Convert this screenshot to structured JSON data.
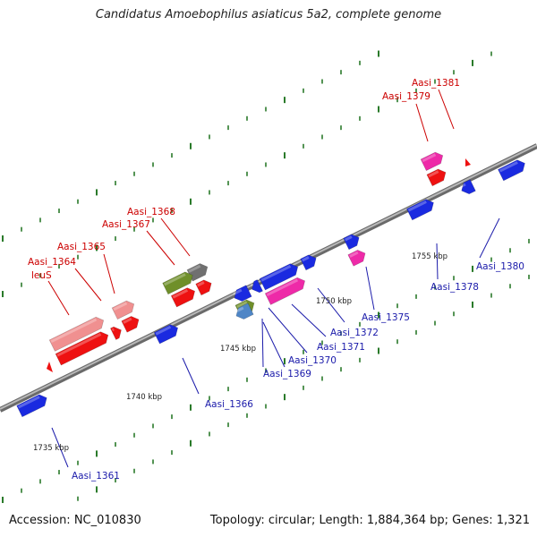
{
  "title": "Candidatus Amoebophilus asiaticus 5a2, complete genome",
  "footer": {
    "accession": "Accession: NC_010830",
    "summary": "Topology: circular; Length: 1,884,364 bp; Genes: 1,321"
  },
  "colors": {
    "backbone": "#909090",
    "red_gene": "#ee1111",
    "pink_gene": "#f09090",
    "magenta_gene": "#ee2aa8",
    "blue_gene": "#1a2ae0",
    "olive_gene": "#6f8f2a",
    "grey_gene": "#707070",
    "steel_gene": "#4f86c6",
    "tick": "#2a7a2a",
    "label_red": "#cc0000",
    "label_blue": "#1a1aaa"
  },
  "kbp_labels": [
    {
      "text": "1735 kbp"
    },
    {
      "text": "1740 kbp"
    },
    {
      "text": "1745 kbp"
    },
    {
      "text": "1750 kbp"
    },
    {
      "text": "1755 kbp"
    }
  ],
  "gene_labels": [
    {
      "text": "Aasi_1381",
      "color": "red"
    },
    {
      "text": "Aasi_1379",
      "color": "red"
    },
    {
      "text": "Aasi_1368",
      "color": "red"
    },
    {
      "text": "Aasi_1367",
      "color": "red"
    },
    {
      "text": "Aasi_1365",
      "color": "red"
    },
    {
      "text": "Aasi_1364",
      "color": "red"
    },
    {
      "text": "leuS",
      "color": "red"
    },
    {
      "text": "Aasi_1380",
      "color": "blue"
    },
    {
      "text": "Aasi_1378",
      "color": "blue"
    },
    {
      "text": "Aasi_1375",
      "color": "blue"
    },
    {
      "text": "Aasi_1372",
      "color": "blue"
    },
    {
      "text": "Aasi_1371",
      "color": "blue"
    },
    {
      "text": "Aasi_1370",
      "color": "blue"
    },
    {
      "text": "Aasi_1369",
      "color": "blue"
    },
    {
      "text": "Aasi_1366",
      "color": "blue"
    },
    {
      "text": "Aasi_1361",
      "color": "blue"
    }
  ]
}
